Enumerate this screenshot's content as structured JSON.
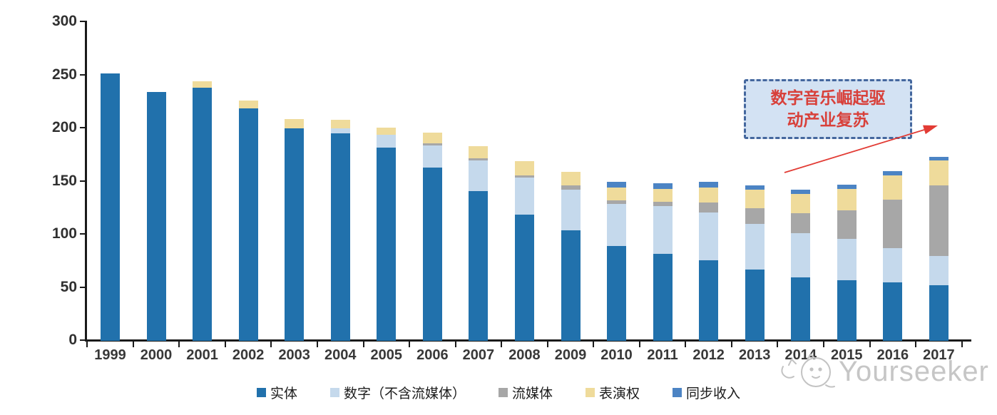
{
  "chart_data": {
    "type": "bar",
    "stacked": true,
    "categories": [
      "1999",
      "2000",
      "2001",
      "2002",
      "2003",
      "2004",
      "2005",
      "2006",
      "2007",
      "2008",
      "2009",
      "2010",
      "2011",
      "2012",
      "2013",
      "2014",
      "2015",
      "2016",
      "2017"
    ],
    "series": [
      {
        "key": "physical",
        "name": "实体",
        "color": "#2171ac",
        "values": [
          252,
          234,
          238,
          219,
          200,
          195,
          182,
          163,
          141,
          119,
          104,
          89,
          82,
          76,
          67,
          60,
          57,
          55,
          52
        ]
      },
      {
        "key": "digital-excl-streaming",
        "name": "数字（不含流媒体）",
        "color": "#c5d9ec",
        "values": [
          0,
          0,
          0,
          0,
          0,
          5,
          12,
          21,
          29,
          35,
          38,
          40,
          45,
          45,
          43,
          41,
          39,
          32,
          28
        ]
      },
      {
        "key": "streaming",
        "name": "流媒体",
        "color": "#a7a7a7",
        "values": [
          0,
          0,
          0,
          0,
          0,
          0,
          0,
          2,
          2,
          2,
          4,
          3,
          4,
          9,
          15,
          19,
          27,
          46,
          66
        ]
      },
      {
        "key": "performance-rights",
        "name": "表演权",
        "color": "#efdb9b",
        "values": [
          0,
          0,
          6,
          7,
          9,
          8,
          7,
          10,
          11,
          13,
          13,
          12,
          12,
          14,
          17,
          18,
          20,
          23,
          24
        ]
      },
      {
        "key": "synchronization",
        "name": "同步收入",
        "color": "#4c84c4",
        "values": [
          0,
          0,
          0,
          0,
          0,
          0,
          0,
          0,
          0,
          0,
          0,
          6,
          5,
          6,
          4,
          4,
          4,
          4,
          3
        ]
      }
    ],
    "title": "",
    "xlabel": "",
    "ylabel": "",
    "ylim": [
      0,
      300
    ],
    "y_ticks": [
      300,
      250,
      200,
      150,
      100,
      50,
      0
    ],
    "grid": false,
    "legend_position": "bottom"
  },
  "annotation": {
    "line1": "数字音乐崛起驱",
    "line2": "动产业复苏",
    "text_color": "#d8403a",
    "box_fill": "#d3e2f3",
    "box_border": "#44679e",
    "arrow_color": "#e23b34"
  },
  "watermark": {
    "text": "Yourseeker",
    "color": "#c6c6c6"
  }
}
